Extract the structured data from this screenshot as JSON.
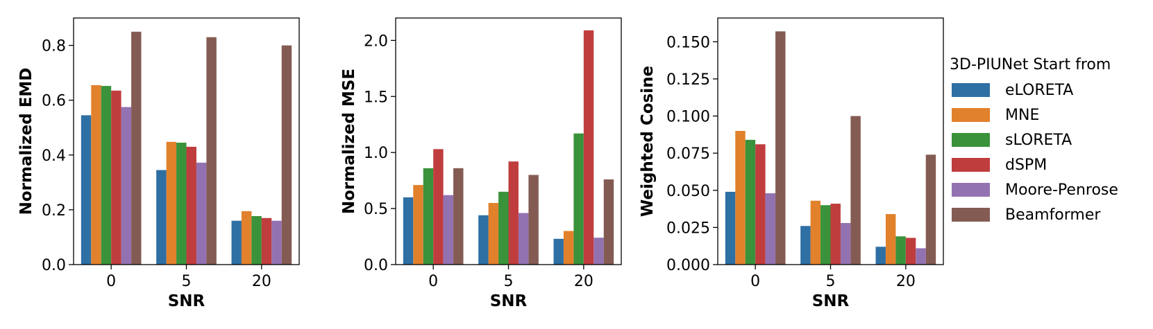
{
  "chart_data": [
    {
      "type": "bar",
      "xlabel": "SNR",
      "ylabel": "Normalized EMD",
      "categories": [
        "0",
        "5",
        "20"
      ],
      "ylim": [
        0,
        0.9
      ],
      "yticks": [
        "0.0",
        "0.2",
        "0.4",
        "0.6",
        "0.8"
      ],
      "grid": false,
      "series": [
        {
          "name": "eLORETA",
          "values": [
            0.545,
            0.345,
            0.16
          ]
        },
        {
          "name": "MNE",
          "values": [
            0.655,
            0.448,
            0.195
          ]
        },
        {
          "name": "sLORETA",
          "values": [
            0.652,
            0.445,
            0.177
          ]
        },
        {
          "name": "dSPM",
          "values": [
            0.635,
            0.43,
            0.17
          ]
        },
        {
          "name": "Moore-Penrose",
          "values": [
            0.575,
            0.372,
            0.16
          ]
        },
        {
          "name": "Beamformer",
          "values": [
            0.85,
            0.83,
            0.8
          ]
        }
      ]
    },
    {
      "type": "bar",
      "xlabel": "SNR",
      "ylabel": "Normalized MSE",
      "categories": [
        "0",
        "5",
        "20"
      ],
      "ylim": [
        0,
        2.2
      ],
      "yticks": [
        "0.0",
        "0.5",
        "1.0",
        "1.5",
        "2.0"
      ],
      "grid": false,
      "series": [
        {
          "name": "eLORETA",
          "values": [
            0.6,
            0.44,
            0.23
          ]
        },
        {
          "name": "MNE",
          "values": [
            0.71,
            0.55,
            0.3
          ]
        },
        {
          "name": "sLORETA",
          "values": [
            0.86,
            0.65,
            1.17
          ]
        },
        {
          "name": "dSPM",
          "values": [
            1.03,
            0.92,
            2.09
          ]
        },
        {
          "name": "Moore-Penrose",
          "values": [
            0.62,
            0.46,
            0.24
          ]
        },
        {
          "name": "Beamformer",
          "values": [
            0.86,
            0.8,
            0.76
          ]
        }
      ]
    },
    {
      "type": "bar",
      "xlabel": "SNR",
      "ylabel": "Weighted Cosine",
      "categories": [
        "0",
        "5",
        "20"
      ],
      "ylim": [
        0,
        0.166
      ],
      "yticks": [
        "0.000",
        "0.025",
        "0.050",
        "0.075",
        "0.100",
        "0.125",
        "0.150"
      ],
      "grid": false,
      "series": [
        {
          "name": "eLORETA",
          "values": [
            0.049,
            0.026,
            0.012
          ]
        },
        {
          "name": "MNE",
          "values": [
            0.09,
            0.043,
            0.034
          ]
        },
        {
          "name": "sLORETA",
          "values": [
            0.084,
            0.04,
            0.019
          ]
        },
        {
          "name": "dSPM",
          "values": [
            0.081,
            0.041,
            0.018
          ]
        },
        {
          "name": "Moore-Penrose",
          "values": [
            0.048,
            0.028,
            0.011
          ]
        },
        {
          "name": "Beamformer",
          "values": [
            0.157,
            0.1,
            0.074
          ]
        }
      ]
    }
  ],
  "legend": {
    "title": "3D-PIUNet Start from",
    "placement": "right",
    "items": [
      {
        "label": "eLORETA",
        "color": "#2e6fa4"
      },
      {
        "label": "MNE",
        "color": "#e1812c"
      },
      {
        "label": "sLORETA",
        "color": "#3a923a"
      },
      {
        "label": "dSPM",
        "color": "#c03d3e"
      },
      {
        "label": "Moore-Penrose",
        "color": "#9372b2"
      },
      {
        "label": "Beamformer",
        "color": "#845b53"
      }
    ]
  }
}
